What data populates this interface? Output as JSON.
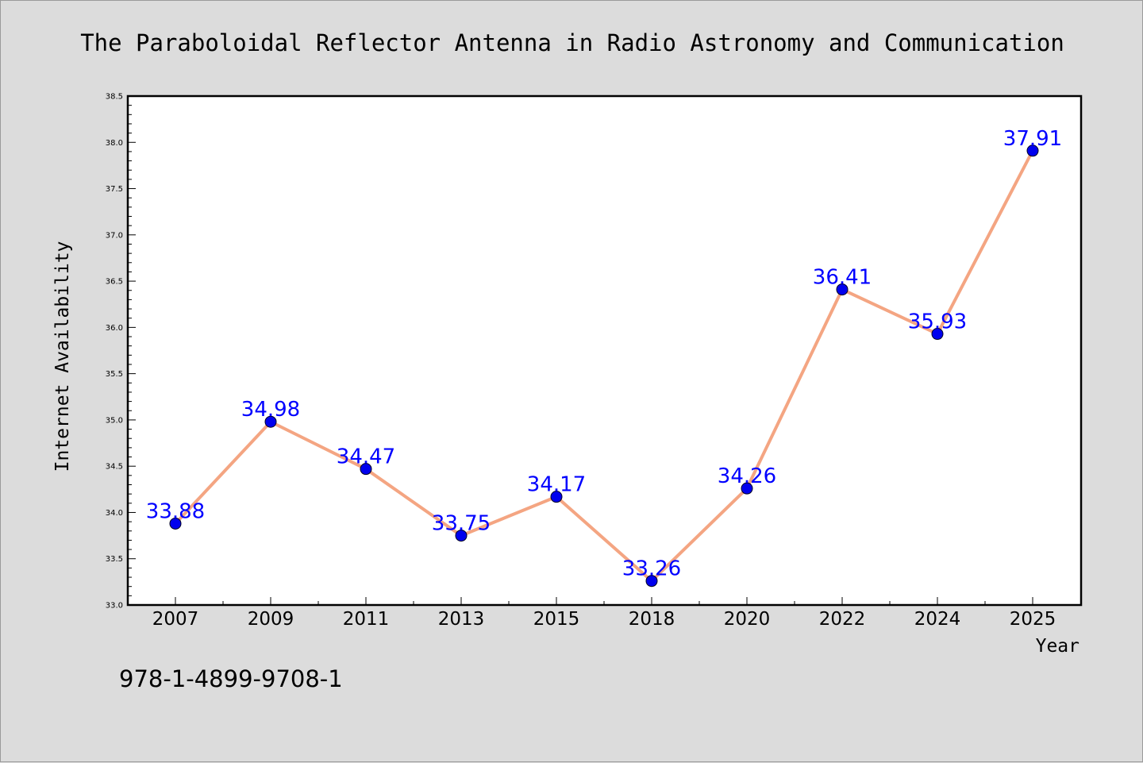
{
  "chart_data": {
    "type": "line",
    "title": "The Paraboloidal Reflector Antenna in Radio Astronomy and Communication",
    "xlabel": "Year",
    "ylabel": "Internet Availability",
    "categories": [
      "2007",
      "2009",
      "2011",
      "2013",
      "2015",
      "2018",
      "2020",
      "2022",
      "2024",
      "2025"
    ],
    "series": [
      {
        "values": [
          33.88,
          34.98,
          34.47,
          33.75,
          34.17,
          33.26,
          34.26,
          36.41,
          35.93,
          37.91
        ],
        "data_labels": [
          "33.88",
          "34.98",
          "34.47",
          "33.75",
          "34.17",
          "33.26",
          "34.26",
          "36.41",
          "35.93",
          "37.91"
        ]
      }
    ],
    "ylim": [
      33.0,
      38.5
    ],
    "yticks": [
      "33.0",
      "33.5",
      "34.0",
      "34.5",
      "35.0",
      "35.5",
      "36.0",
      "36.5",
      "37.0",
      "37.5",
      "38.0",
      "38.5"
    ],
    "grid": false,
    "colors": {
      "line": "#f4a582",
      "marker": "#0000ee",
      "label": "#0000ff"
    }
  },
  "footer": {
    "code": "978-1-4899-9708-1"
  }
}
